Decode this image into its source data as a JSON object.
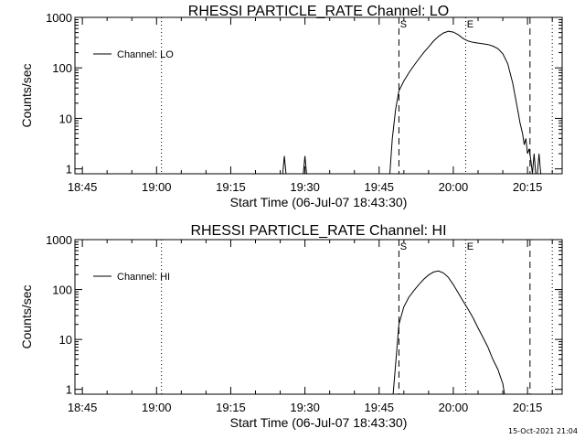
{
  "chart_data": [
    {
      "type": "line",
      "title": "RHESSI PARTICLE_RATE Channel: LO",
      "xlabel": "Start Time (06-Jul-07 18:43:30)",
      "ylabel": "Counts/sec",
      "x_unit": "time of day (06-Jul-07, UT)",
      "xlim": [
        "18:43:30",
        "20:22:00"
      ],
      "ylim": [
        0.8,
        1000
      ],
      "y_scale": "log",
      "x_ticks": [
        "18:45",
        "19:00",
        "19:15",
        "19:30",
        "19:45",
        "20:00",
        "20:15"
      ],
      "y_ticks": [
        "1",
        "10",
        "100",
        "1000"
      ],
      "grid": false,
      "legend": {
        "position": "top-left",
        "entries": [
          "Channel: LO"
        ]
      },
      "markers": [
        {
          "label": "",
          "time": "19:01:00",
          "style": "dotted"
        },
        {
          "label": "S",
          "time": "19:49:00",
          "style": "dashed"
        },
        {
          "label": "E",
          "time": "20:02:30",
          "style": "dotted"
        },
        {
          "label": "",
          "time": "20:15:30",
          "style": "dashed"
        },
        {
          "label": "",
          "time": "20:20:00",
          "style": "dotted"
        }
      ],
      "series": [
        {
          "name": "Channel: LO",
          "segments": [
            [
              [
                "19:25:30",
                0.8
              ],
              [
                "19:25:50",
                1.8
              ],
              [
                "19:26:10",
                0.8
              ]
            ],
            [
              [
                "19:29:40",
                0.8
              ],
              [
                "19:30:00",
                1.8
              ],
              [
                "19:30:20",
                0.8
              ]
            ],
            [
              [
                "19:47:10",
                0.8
              ],
              [
                "19:47:40",
                4
              ],
              [
                "19:48:20",
                15
              ],
              [
                "19:49:00",
                35
              ],
              [
                "19:50:00",
                55
              ],
              [
                "19:51:00",
                80
              ],
              [
                "19:52:00",
                110
              ],
              [
                "19:53:00",
                150
              ],
              [
                "19:54:00",
                200
              ],
              [
                "19:55:00",
                260
              ],
              [
                "19:56:00",
                340
              ],
              [
                "19:57:00",
                420
              ],
              [
                "19:58:00",
                490
              ],
              [
                "19:59:00",
                530
              ],
              [
                "20:00:00",
                510
              ],
              [
                "20:01:00",
                450
              ],
              [
                "20:02:00",
                380
              ],
              [
                "20:03:00",
                340
              ],
              [
                "20:04:00",
                320
              ],
              [
                "20:05:00",
                310
              ],
              [
                "20:06:00",
                300
              ],
              [
                "20:07:00",
                290
              ],
              [
                "20:08:00",
                270
              ],
              [
                "20:09:00",
                240
              ],
              [
                "20:10:00",
                190
              ],
              [
                "20:11:00",
                120
              ],
              [
                "20:12:00",
                50
              ],
              [
                "20:13:00",
                15
              ],
              [
                "20:13:30",
                8
              ],
              [
                "20:14:00",
                5
              ],
              [
                "20:14:20",
                3
              ],
              [
                "20:14:40",
                4
              ],
              [
                "20:15:00",
                2
              ],
              [
                "20:15:20",
                2.5
              ],
              [
                "20:15:40",
                1.5
              ],
              [
                "20:16:00",
                0.8
              ]
            ],
            [
              [
                "20:16:00",
                0.8
              ],
              [
                "20:16:20",
                2
              ],
              [
                "20:16:40",
                0.8
              ]
            ],
            [
              [
                "20:17:00",
                0.8
              ],
              [
                "20:17:20",
                2
              ],
              [
                "20:17:40",
                0.8
              ]
            ]
          ]
        }
      ]
    },
    {
      "type": "line",
      "title": "RHESSI PARTICLE_RATE Channel: HI",
      "xlabel": "Start Time (06-Jul-07 18:43:30)",
      "ylabel": "Counts/sec",
      "x_unit": "time of day (06-Jul-07, UT)",
      "xlim": [
        "18:43:30",
        "20:22:00"
      ],
      "ylim": [
        0.8,
        1000
      ],
      "y_scale": "log",
      "x_ticks": [
        "18:45",
        "19:00",
        "19:15",
        "19:30",
        "19:45",
        "20:00",
        "20:15"
      ],
      "y_ticks": [
        "1",
        "10",
        "100",
        "1000"
      ],
      "grid": false,
      "legend": {
        "position": "top-left",
        "entries": [
          "Channel: HI"
        ]
      },
      "markers": [
        {
          "label": "",
          "time": "19:01:00",
          "style": "dotted"
        },
        {
          "label": "S",
          "time": "19:49:00",
          "style": "dashed"
        },
        {
          "label": "E",
          "time": "20:02:30",
          "style": "dotted"
        },
        {
          "label": "",
          "time": "20:15:30",
          "style": "dashed"
        },
        {
          "label": "",
          "time": "20:20:00",
          "style": "dotted"
        }
      ],
      "series": [
        {
          "name": "Channel: HI",
          "segments": [
            [
              [
                "19:47:50",
                0.8
              ],
              [
                "19:48:30",
                5
              ],
              [
                "19:49:00",
                20
              ],
              [
                "19:50:00",
                45
              ],
              [
                "19:51:00",
                70
              ],
              [
                "19:52:00",
                95
              ],
              [
                "19:53:00",
                125
              ],
              [
                "19:54:00",
                160
              ],
              [
                "19:55:00",
                195
              ],
              [
                "19:56:00",
                225
              ],
              [
                "19:57:00",
                235
              ],
              [
                "19:58:00",
                215
              ],
              [
                "19:59:00",
                175
              ],
              [
                "20:00:00",
                125
              ],
              [
                "20:01:00",
                85
              ],
              [
                "20:02:00",
                58
              ],
              [
                "20:03:00",
                40
              ],
              [
                "20:04:00",
                27
              ],
              [
                "20:05:00",
                17
              ],
              [
                "20:06:00",
                11
              ],
              [
                "20:07:00",
                7
              ],
              [
                "20:08:00",
                4
              ],
              [
                "20:09:00",
                2.5
              ],
              [
                "20:09:30",
                1.8
              ],
              [
                "20:10:00",
                1.3
              ],
              [
                "20:10:20",
                0.8
              ]
            ]
          ]
        }
      ]
    }
  ],
  "footer": {
    "timestamp": "15-Oct-2021 21:04"
  }
}
